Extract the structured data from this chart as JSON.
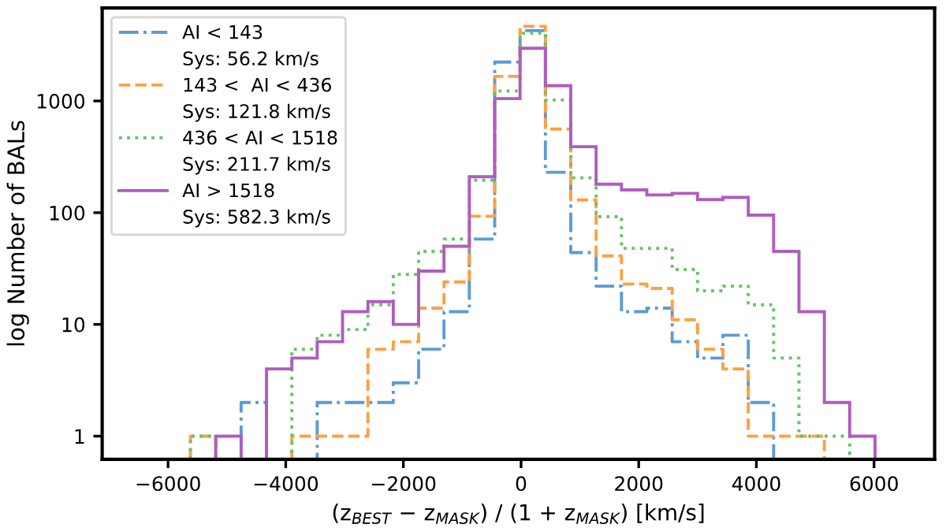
{
  "chart_data": {
    "type": "histogram",
    "bins": [
      -5620,
      -5189,
      -4758,
      -4327,
      -3896,
      -3465,
      -3034,
      -2603,
      -2172,
      -1741,
      -1310,
      -879,
      -448,
      -17,
      414,
      845,
      1276,
      1707,
      2138,
      2569,
      3000,
      3431,
      3862,
      4293,
      4724,
      5155,
      5586,
      6017
    ],
    "series": [
      {
        "name": "AI < 143",
        "color": "#5b9bd5",
        "line_style": "dashdot",
        "values": [
          null,
          null,
          2,
          null,
          null,
          2,
          2,
          2,
          3,
          6,
          13,
          58,
          2230,
          4260,
          230,
          44,
          22,
          13,
          14,
          7,
          5,
          8,
          2,
          null,
          null,
          null,
          null
        ]
      },
      {
        "name": "143 <  AI < 436",
        "color": "#ffa040",
        "line_style": "dashed",
        "values": [
          1,
          null,
          null,
          null,
          1,
          1,
          1,
          6,
          7,
          14,
          24,
          93,
          1660,
          4660,
          560,
          130,
          41,
          23,
          21,
          11,
          6,
          4,
          1,
          1,
          1,
          null,
          null
        ]
      },
      {
        "name": "436 < AI < 1518",
        "color": "#66c466",
        "line_style": "dotted",
        "values": [
          1,
          null,
          null,
          null,
          6,
          8,
          9,
          15,
          28,
          45,
          58,
          195,
          1230,
          4040,
          1020,
          205,
          92,
          48,
          48,
          31,
          20,
          22,
          15,
          5,
          1,
          1,
          null
        ]
      },
      {
        "name": "AI > 1518",
        "color": "#b05cc0",
        "line_style": "solid",
        "values": [
          null,
          1,
          null,
          4,
          5,
          7,
          13,
          16,
          10,
          30,
          50,
          210,
          1050,
          2960,
          1370,
          390,
          180,
          160,
          144,
          149,
          131,
          137,
          95,
          45,
          13,
          2,
          1
        ]
      }
    ],
    "annotations": [
      "Sys: 56.2 km/s",
      "Sys: 121.8 km/s",
      "Sys: 211.7 km/s",
      "Sys: 582.3 km/s"
    ],
    "xlabel": "(z$_{BEST}$ − z$_{MASK}$) / (1 + z$_{MASK}$) [km/s]",
    "ylabel": "log Number of BALs",
    "log": true,
    "xlim": [
      -7120,
      7030
    ],
    "ylim": [
      0.62,
      6800
    ],
    "xticks": [
      {
        "value": -6000,
        "label": "−6000"
      },
      {
        "value": -4000,
        "label": "−4000"
      },
      {
        "value": -2000,
        "label": "−2000"
      },
      0,
      2000,
      4000,
      6000
    ],
    "yticks": [
      1,
      10,
      100,
      1000
    ],
    "grid": false,
    "legend": "top left"
  }
}
